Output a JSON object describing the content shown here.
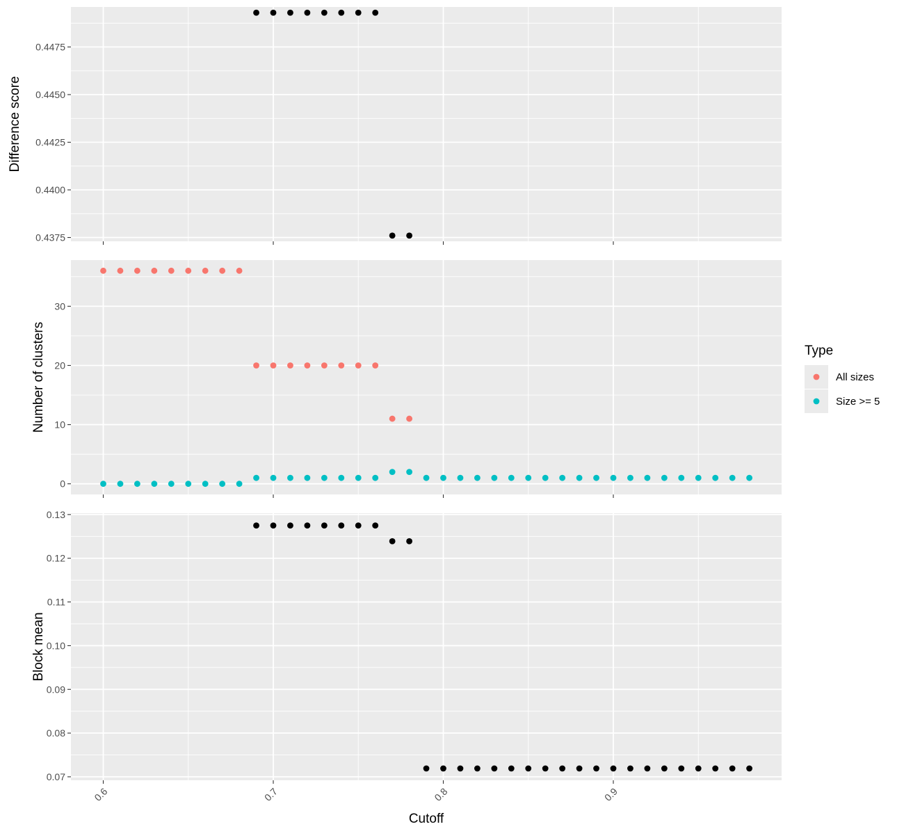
{
  "chart_data": [
    {
      "type": "scatter",
      "ylabel": "Difference score",
      "xlim": [
        0.6,
        0.98
      ],
      "ylim": [
        0.4373,
        0.4496
      ],
      "yticks": [
        0.4375,
        0.44,
        0.4425,
        0.445,
        0.4475
      ],
      "ytick_labels": [
        "0.4375",
        "0.4400",
        "0.4425",
        "0.4450",
        "0.4475"
      ],
      "series": [
        {
          "color": "#000000",
          "x": [
            0.69,
            0.7,
            0.71,
            0.72,
            0.73,
            0.74,
            0.75,
            0.76,
            0.77,
            0.78
          ],
          "y": [
            0.4493,
            0.4493,
            0.4493,
            0.4493,
            0.4493,
            0.4493,
            0.4493,
            0.4493,
            0.4376,
            0.4376
          ]
        }
      ]
    },
    {
      "type": "scatter",
      "ylabel": "Number of clusters",
      "xlim": [
        0.6,
        0.98
      ],
      "ylim": [
        -1.8,
        37.8
      ],
      "yticks": [
        0,
        10,
        20,
        30
      ],
      "ytick_labels": [
        "0",
        "10",
        "20",
        "30"
      ],
      "series": [
        {
          "name": "All sizes",
          "color": "#F8766D",
          "x": [
            0.6,
            0.61,
            0.62,
            0.63,
            0.64,
            0.65,
            0.66,
            0.67,
            0.68,
            0.69,
            0.7,
            0.71,
            0.72,
            0.73,
            0.74,
            0.75,
            0.76,
            0.77,
            0.78
          ],
          "y": [
            36,
            36,
            36,
            36,
            36,
            36,
            36,
            36,
            36,
            20,
            20,
            20,
            20,
            20,
            20,
            20,
            20,
            11,
            11
          ]
        },
        {
          "name": "Size >= 5",
          "color": "#00BFC4",
          "x": [
            0.6,
            0.61,
            0.62,
            0.63,
            0.64,
            0.65,
            0.66,
            0.67,
            0.68,
            0.69,
            0.7,
            0.71,
            0.72,
            0.73,
            0.74,
            0.75,
            0.76,
            0.77,
            0.78,
            0.79,
            0.8,
            0.81,
            0.82,
            0.83,
            0.84,
            0.85,
            0.86,
            0.87,
            0.88,
            0.89,
            0.9,
            0.91,
            0.92,
            0.93,
            0.94,
            0.95,
            0.96,
            0.97,
            0.98
          ],
          "y": [
            0,
            0,
            0,
            0,
            0,
            0,
            0,
            0,
            0,
            1,
            1,
            1,
            1,
            1,
            1,
            1,
            1,
            2,
            2,
            1,
            1,
            1,
            1,
            1,
            1,
            1,
            1,
            1,
            1,
            1,
            1,
            1,
            1,
            1,
            1,
            1,
            1,
            1,
            1
          ]
        }
      ]
    },
    {
      "type": "scatter",
      "ylabel": "Block mean",
      "xlabel": "Cutoff",
      "xlim": [
        0.6,
        0.98
      ],
      "ylim": [
        0.0692,
        0.1303
      ],
      "xticks": [
        0.6,
        0.7,
        0.8,
        0.9
      ],
      "xtick_labels": [
        "0.6",
        "0.7",
        "0.8",
        "0.9"
      ],
      "yticks": [
        0.07,
        0.08,
        0.09,
        0.1,
        0.11,
        0.12,
        0.13
      ],
      "ytick_labels": [
        "0.07",
        "0.08",
        "0.09",
        "0.10",
        "0.11",
        "0.12",
        "0.13"
      ],
      "series": [
        {
          "color": "#000000",
          "x": [
            0.69,
            0.7,
            0.71,
            0.72,
            0.73,
            0.74,
            0.75,
            0.76,
            0.77,
            0.78,
            0.79,
            0.8,
            0.81,
            0.82,
            0.83,
            0.84,
            0.85,
            0.86,
            0.87,
            0.88,
            0.89,
            0.9,
            0.91,
            0.92,
            0.93,
            0.94,
            0.95,
            0.96,
            0.97,
            0.98
          ],
          "y": [
            0.1275,
            0.1275,
            0.1275,
            0.1275,
            0.1275,
            0.1275,
            0.1275,
            0.1275,
            0.1239,
            0.1239,
            0.0719,
            0.0719,
            0.0719,
            0.0719,
            0.0719,
            0.0719,
            0.0719,
            0.0719,
            0.0719,
            0.0719,
            0.0719,
            0.0719,
            0.0719,
            0.0719,
            0.0719,
            0.0719,
            0.0719,
            0.0719,
            0.0719,
            0.0719
          ]
        }
      ]
    }
  ],
  "legend": {
    "title": "Type",
    "items": [
      {
        "label": "All sizes",
        "color": "#F8766D"
      },
      {
        "label": "Size >= 5",
        "color": "#00BFC4"
      }
    ]
  }
}
